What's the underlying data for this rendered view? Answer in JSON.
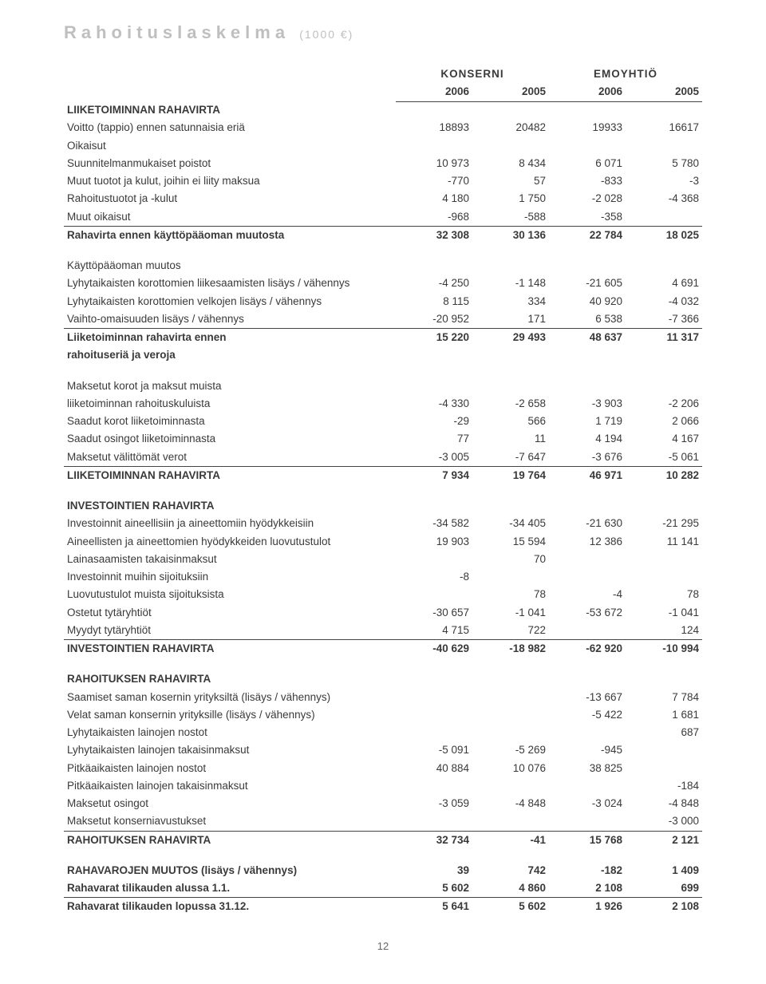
{
  "title": "Rahoituslaskelma",
  "units": "(1000 €)",
  "page_number": "12",
  "group_headers": {
    "konserni": "KONSERNI",
    "emo": "EMOYHTIÖ"
  },
  "years": {
    "k1": "2006",
    "k2": "2005",
    "e1": "2006",
    "e2": "2005"
  },
  "rows": [
    {
      "bold": true,
      "label": "LIIKETOIMINNAN RAHAVIRTA"
    },
    {
      "label": "Voitto (tappio) ennen satunnaisia eriä",
      "v": [
        "18893",
        "20482",
        "19933",
        "16617"
      ]
    },
    {
      "label": "Oikaisut"
    },
    {
      "label": "Suunnitelmanmukaiset poistot",
      "v": [
        "10 973",
        "8 434",
        "6 071",
        "5 780"
      ]
    },
    {
      "label": "Muut tuotot ja kulut, joihin ei liity maksua",
      "v": [
        "-770",
        "57",
        "-833",
        "-3"
      ]
    },
    {
      "label": "Rahoitustuotot ja -kulut",
      "v": [
        "4 180",
        "1 750",
        "-2 028",
        "-4 368"
      ]
    },
    {
      "label": "Muut oikaisut",
      "v": [
        "-968",
        "-588",
        "-358",
        ""
      ],
      "underline": true
    },
    {
      "bold": true,
      "label": "Rahavirta ennen käyttöpääoman muutosta",
      "v": [
        "32 308",
        "30 136",
        "22 784",
        "18 025"
      ]
    },
    {
      "spacer": true
    },
    {
      "label": "Käyttöpääoman muutos"
    },
    {
      "label": "Lyhytaikaisten korottomien liikesaamisten lisäys / vähennys",
      "v": [
        "-4 250",
        "-1 148",
        "-21 605",
        "4 691"
      ]
    },
    {
      "label": "Lyhytaikaisten korottomien velkojen lisäys / vähennys",
      "v": [
        "8 115",
        "334",
        "40 920",
        "-4 032"
      ]
    },
    {
      "label": "Vaihto-omaisuuden lisäys / vähennys",
      "v": [
        "-20 952",
        "171",
        "6 538",
        "-7 366"
      ],
      "underline": true
    },
    {
      "bold": true,
      "label": "Liiketoiminnan rahavirta ennen",
      "v": [
        "15 220",
        "29 493",
        "48 637",
        "11 317"
      ]
    },
    {
      "bold": true,
      "label": "rahoituseriä ja veroja"
    },
    {
      "spacer": true
    },
    {
      "label": "Maksetut korot ja maksut muista"
    },
    {
      "label": "liiketoiminnan rahoituskuluista",
      "v": [
        "-4 330",
        "-2 658",
        "-3 903",
        "-2 206"
      ]
    },
    {
      "label": "Saadut korot liiketoiminnasta",
      "v": [
        "-29",
        "566",
        "1 719",
        "2 066"
      ]
    },
    {
      "label": "Saadut osingot liiketoiminnasta",
      "v": [
        "77",
        "11",
        "4 194",
        "4 167"
      ]
    },
    {
      "label": "Maksetut välittömät verot",
      "v": [
        "-3 005",
        "-7 647",
        "-3 676",
        "-5 061"
      ],
      "underline": true
    },
    {
      "bold": true,
      "label": "LIIKETOIMINNAN RAHAVIRTA",
      "v": [
        "7 934",
        "19 764",
        "46 971",
        "10 282"
      ]
    },
    {
      "spacer": true
    },
    {
      "bold": true,
      "label": "INVESTOINTIEN RAHAVIRTA"
    },
    {
      "label": "Investoinnit aineellisiin ja aineettomiin hyödykkeisiin",
      "v": [
        "-34 582",
        "-34 405",
        "-21 630",
        "-21 295"
      ]
    },
    {
      "label": "Aineellisten ja aineettomien hyödykkeiden luovutustulot",
      "v": [
        "19 903",
        "15 594",
        "12 386",
        "11 141"
      ]
    },
    {
      "label": "Lainasaamisten takaisinmaksut",
      "v": [
        "",
        "70",
        "",
        ""
      ]
    },
    {
      "label": "Investoinnit muihin sijoituksiin",
      "v": [
        "-8",
        "",
        "",
        ""
      ]
    },
    {
      "label": "Luovutustulot muista sijoituksista",
      "v": [
        "",
        "78",
        "-4",
        "78"
      ]
    },
    {
      "label": "Ostetut tytäryhtiöt",
      "v": [
        "-30 657",
        "-1 041",
        "-53 672",
        "-1 041"
      ]
    },
    {
      "label": "Myydyt tytäryhtiöt",
      "v": [
        "4 715",
        "722",
        "",
        "124"
      ],
      "underline": true
    },
    {
      "bold": true,
      "label": "INVESTOINTIEN RAHAVIRTA",
      "v": [
        "-40 629",
        "-18 982",
        "-62 920",
        "-10 994"
      ]
    },
    {
      "spacer": true
    },
    {
      "bold": true,
      "label": "RAHOITUKSEN RAHAVIRTA"
    },
    {
      "label": "Saamiset saman kosernin yrityksiltä (lisäys / vähennys)",
      "v": [
        "",
        "",
        "-13 667",
        "7 784"
      ]
    },
    {
      "label": "Velat saman konsernin yrityksille (lisäys / vähennys)",
      "v": [
        "",
        "",
        "-5 422",
        "1 681"
      ]
    },
    {
      "label": "Lyhytaikaisten lainojen nostot",
      "v": [
        "",
        "",
        "",
        "687"
      ]
    },
    {
      "label": "Lyhytaikaisten lainojen takaisinmaksut",
      "v": [
        "-5 091",
        "-5 269",
        "-945",
        ""
      ]
    },
    {
      "label": "Pitkäaikaisten lainojen nostot",
      "v": [
        "40 884",
        "10 076",
        "38 825",
        ""
      ]
    },
    {
      "label": "Pitkäaikaisten lainojen takaisinmaksut",
      "v": [
        "",
        "",
        "",
        "-184"
      ]
    },
    {
      "label": "Maksetut osingot",
      "v": [
        "-3 059",
        "-4 848",
        "-3 024",
        "-4 848"
      ]
    },
    {
      "label": "Maksetut konserniavustukset",
      "v": [
        "",
        "",
        "",
        "-3 000"
      ],
      "underline": true
    },
    {
      "bold": true,
      "label": "RAHOITUKSEN RAHAVIRTA",
      "v": [
        "32 734",
        "-41",
        "15 768",
        "2 121"
      ]
    },
    {
      "spacer": true
    },
    {
      "bold": true,
      "label": "RAHAVAROJEN MUUTOS (lisäys / vähennys)",
      "v": [
        "39",
        "742",
        "-182",
        "1 409"
      ]
    },
    {
      "bold": true,
      "label": "Rahavarat tilikauden alussa 1.1.",
      "v": [
        "5 602",
        "4 860",
        "2 108",
        "699"
      ],
      "underline": true
    },
    {
      "bold": true,
      "label": "Rahavarat tilikauden lopussa 31.12.",
      "v": [
        "5 641",
        "5 602",
        "1 926",
        "2 108"
      ]
    }
  ]
}
